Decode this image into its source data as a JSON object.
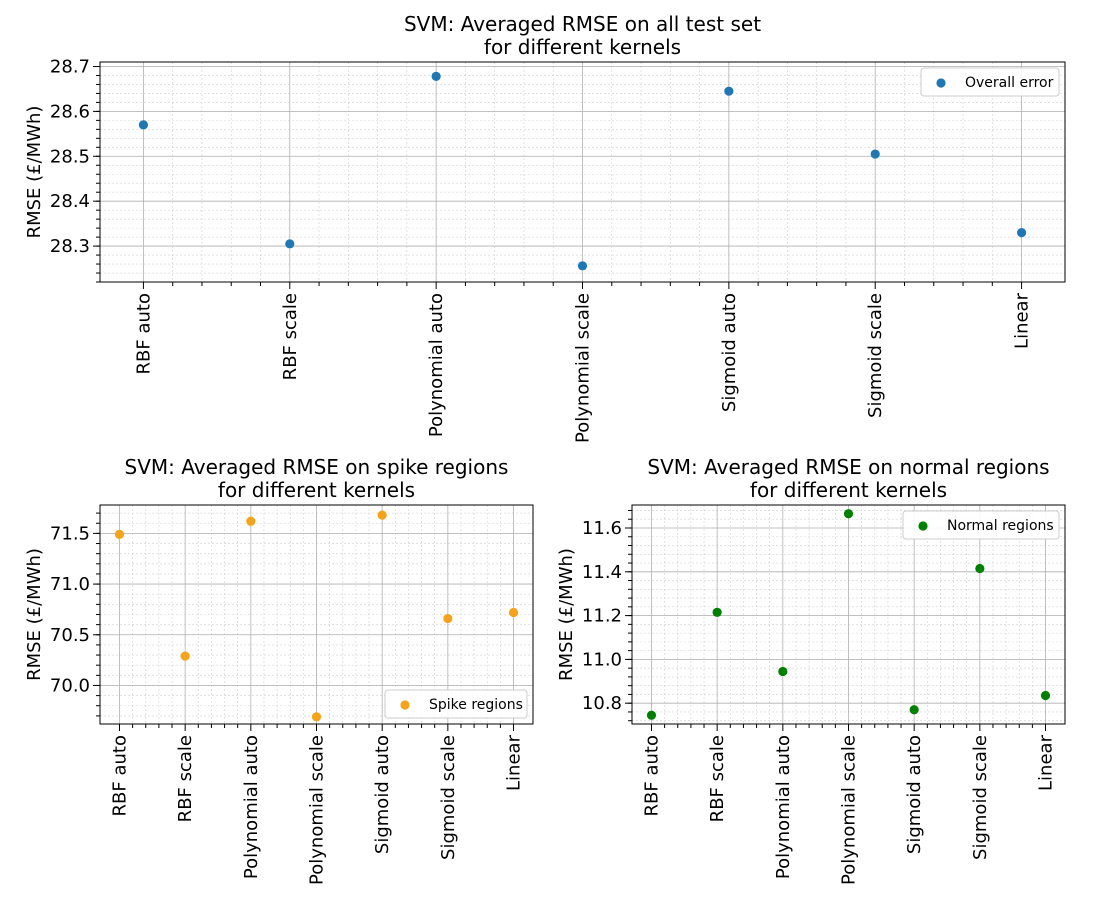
{
  "chart_data": [
    {
      "id": "overall",
      "type": "scatter",
      "title": [
        "SVM: Averaged RMSE on all test set",
        "for different kernels"
      ],
      "ylabel": "RMSE (£/MWh)",
      "categories": [
        "RBF auto",
        "RBF scale",
        "Polynomial auto",
        "Polynomial scale",
        "Sigmoid auto",
        "Sigmoid scale",
        "Linear"
      ],
      "series": [
        {
          "name": "Overall error",
          "color": "#1f77b4",
          "values": [
            28.57,
            28.305,
            28.678,
            28.256,
            28.645,
            28.505,
            28.33
          ]
        }
      ],
      "ylim": [
        28.22,
        28.71
      ],
      "yticks": [
        28.3,
        28.4,
        28.5,
        28.6,
        28.7
      ],
      "yminor_step": 0.02,
      "legend": "top-right",
      "grid": true
    },
    {
      "id": "spike",
      "type": "scatter",
      "title": [
        "SVM: Averaged RMSE on spike regions",
        "for different kernels"
      ],
      "ylabel": "RMSE (£/MWh)",
      "categories": [
        "RBF auto",
        "RBF scale",
        "Polynomial auto",
        "Polynomial scale",
        "Sigmoid auto",
        "Sigmoid scale",
        "Linear"
      ],
      "series": [
        {
          "name": "Spike regions",
          "color": "#f5a31a",
          "values": [
            71.49,
            70.29,
            71.62,
            69.69,
            71.68,
            70.66,
            70.72
          ]
        }
      ],
      "ylim": [
        69.62,
        71.78
      ],
      "yticks": [
        70.0,
        70.5,
        71.0,
        71.5
      ],
      "ytick_labels": [
        "70.0",
        "70.5",
        "71.0",
        "71.5"
      ],
      "yminor_step": 0.1,
      "legend": "bottom-right",
      "grid": true
    },
    {
      "id": "normal",
      "type": "scatter",
      "title": [
        "SVM: Averaged RMSE on normal regions",
        "for different kernels"
      ],
      "ylabel": "RMSE (£/MWh)",
      "categories": [
        "RBF auto",
        "RBF scale",
        "Polynomial auto",
        "Polynomial scale",
        "Sigmoid auto",
        "Sigmoid scale",
        "Linear"
      ],
      "series": [
        {
          "name": "Normal regions",
          "color": "#008000",
          "values": [
            10.745,
            11.215,
            10.945,
            11.665,
            10.77,
            11.415,
            10.835
          ]
        }
      ],
      "ylim": [
        10.705,
        11.705
      ],
      "yticks": [
        10.8,
        11.0,
        11.2,
        11.4,
        11.6
      ],
      "ytick_labels": [
        "10.8",
        "11.0",
        "11.2",
        "11.4",
        "11.6"
      ],
      "yminor_step": 0.04,
      "legend": "top-right",
      "grid": true
    }
  ]
}
